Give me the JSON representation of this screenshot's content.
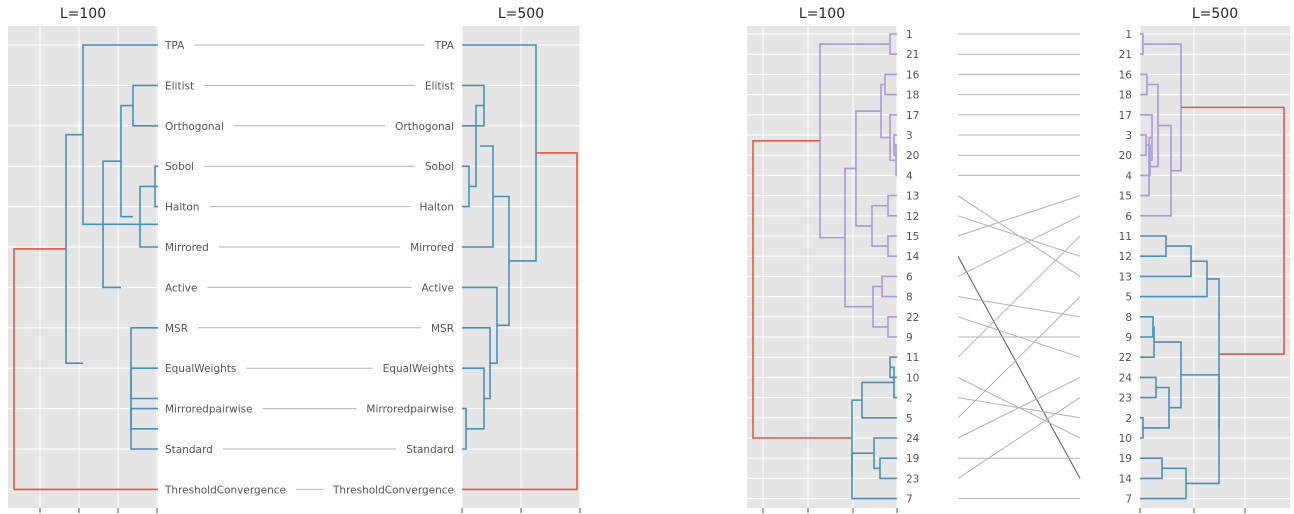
{
  "colors": {
    "blue": "#4a90b8",
    "red": "#e05a47",
    "purple": "#a99cd8",
    "panel": "#e5e5e5",
    "grid": "#ffffff",
    "link_light": "#b3b3b3",
    "link_dark": "#595959"
  },
  "chart_data": [
    {
      "type": "dendrogram-tanglegram",
      "left_title": "L=100",
      "right_title": "L=500",
      "left_leaves": [
        "TPA",
        "Elitist",
        "Orthogonal",
        "Sobol",
        "Halton",
        "Mirrored",
        "Active",
        "MSR",
        "EqualWeights",
        "Mirroredpairwise",
        "Standard",
        "ThresholdConvergence"
      ],
      "right_leaves": [
        "TPA",
        "Elitist",
        "Orthogonal",
        "Sobol",
        "Halton",
        "Mirrored",
        "Active",
        "MSR",
        "EqualWeights",
        "Mirroredpairwise",
        "Standard",
        "ThresholdConvergence"
      ]
    },
    {
      "type": "dendrogram-tanglegram",
      "left_title": "L=100",
      "right_title": "L=500",
      "left_leaves": [
        "1",
        "21",
        "16",
        "18",
        "17",
        "3",
        "20",
        "4",
        "13",
        "12",
        "15",
        "14",
        "6",
        "8",
        "22",
        "9",
        "11",
        "10",
        "2",
        "5",
        "24",
        "19",
        "23",
        "7"
      ],
      "right_leaves": [
        "1",
        "21",
        "16",
        "18",
        "17",
        "3",
        "20",
        "4",
        "15",
        "6",
        "11",
        "12",
        "13",
        "5",
        "8",
        "9",
        "22",
        "24",
        "23",
        "2",
        "10",
        "19",
        "14",
        "7"
      ]
    }
  ]
}
